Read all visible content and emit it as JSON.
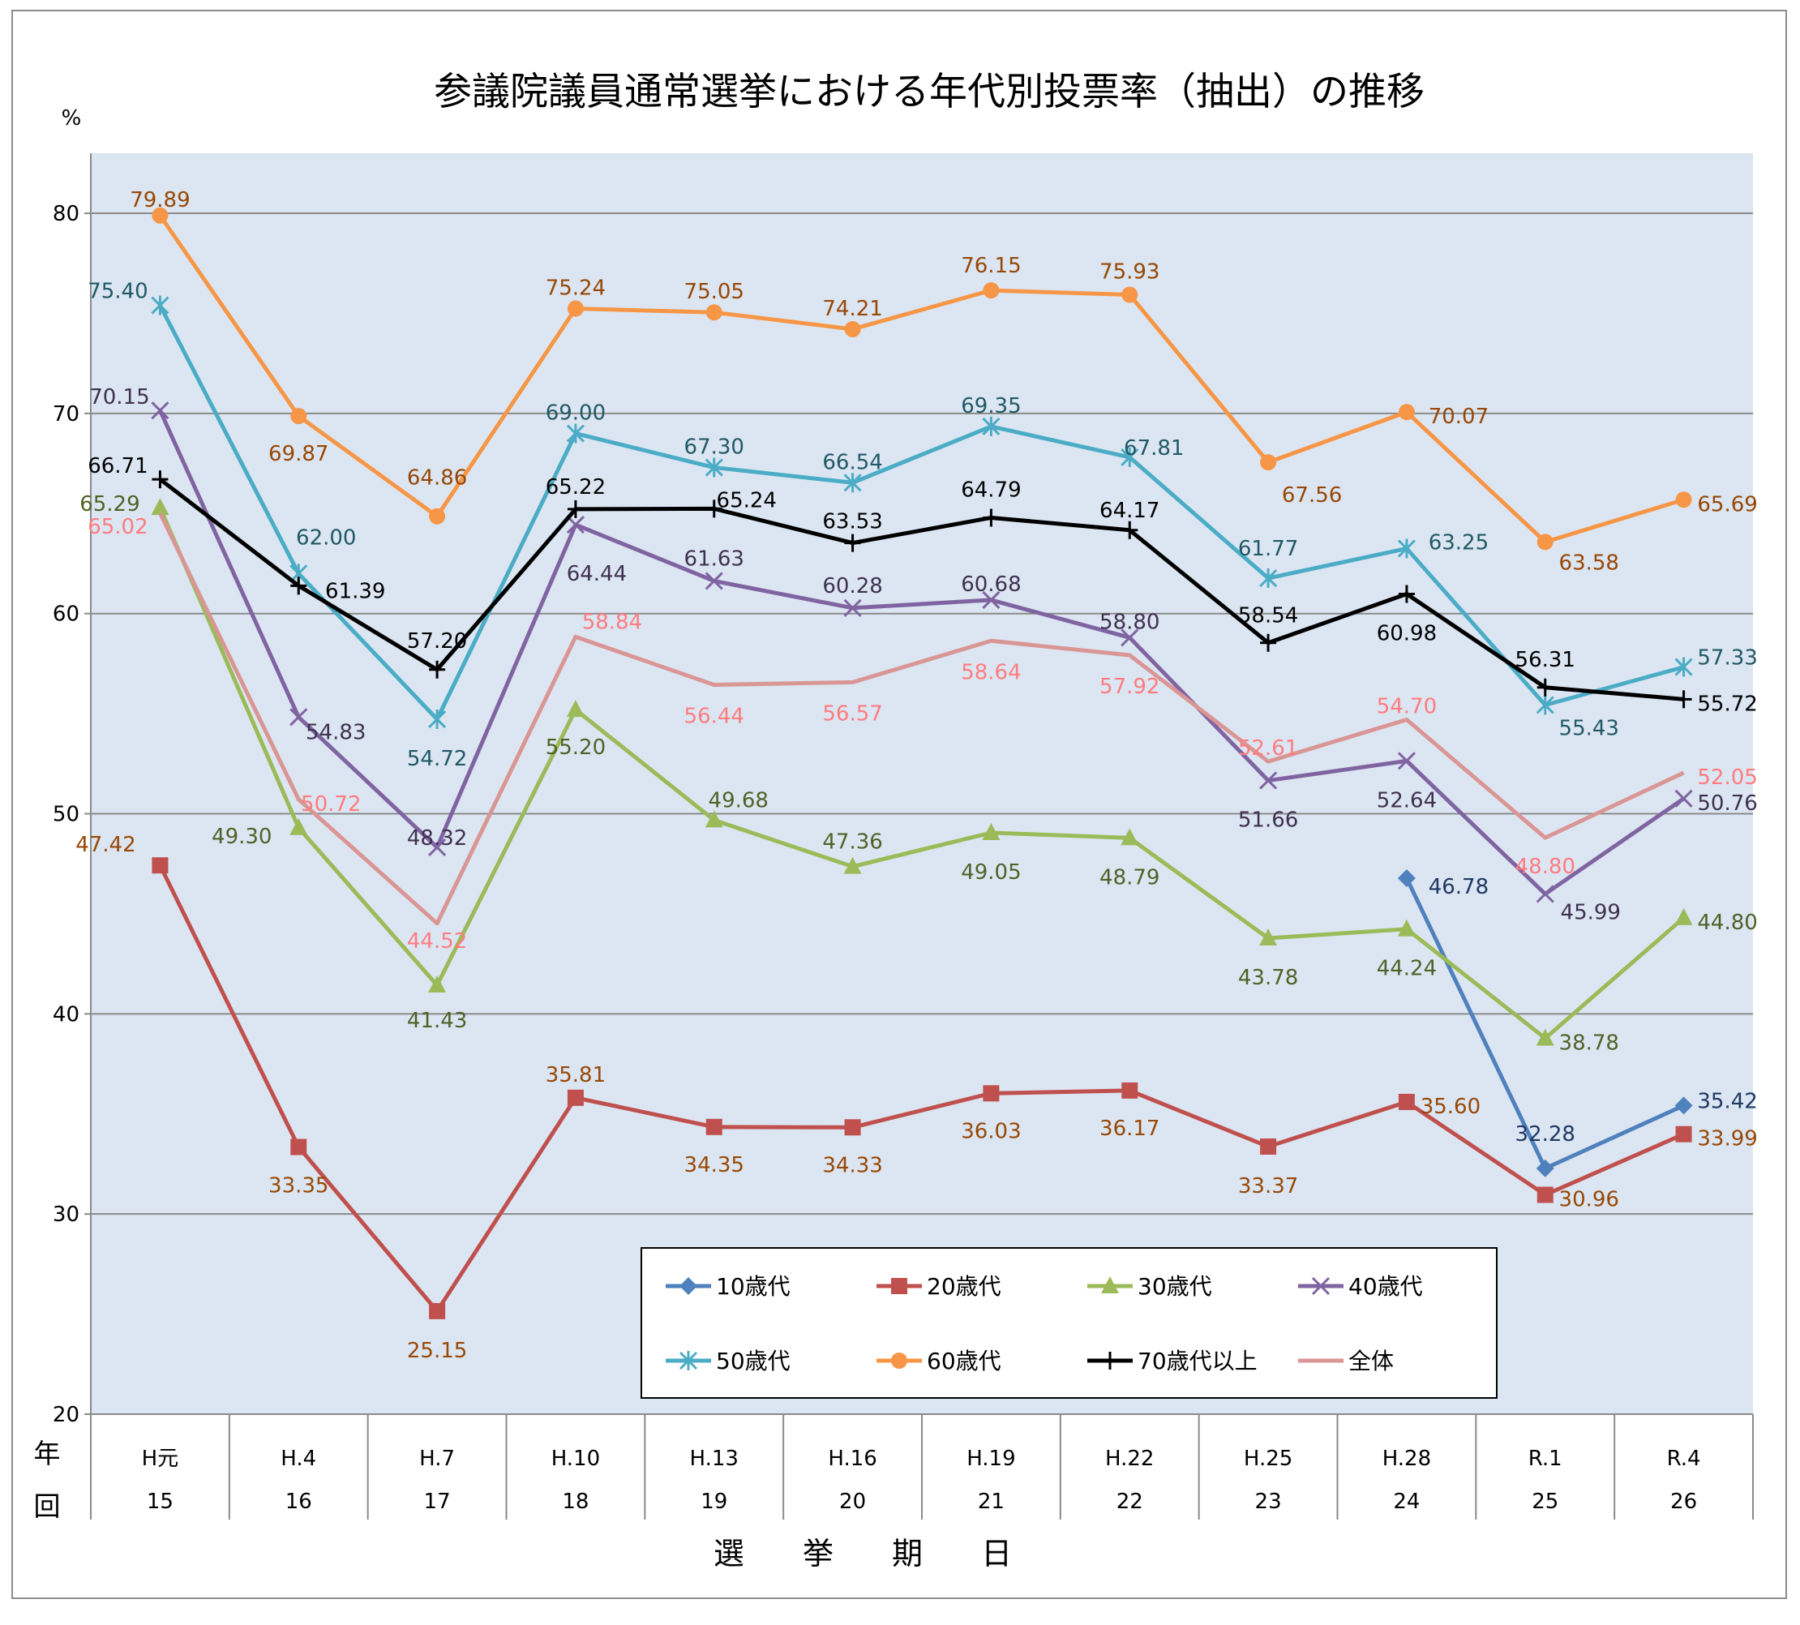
{
  "chart_data": {
    "type": "line",
    "title": "参議院議員通常選挙における年代別投票率（抽出）の推移",
    "ylabel": "%",
    "xlabel": "選 挙 期 日",
    "ylim": [
      20,
      83
    ],
    "yticks": [
      20,
      30,
      40,
      50,
      60,
      70,
      80
    ],
    "grid": true,
    "legend_position": "bottom-center",
    "row_labels": {
      "year": "年",
      "round": "回"
    },
    "categories": [
      "H元",
      "H.4",
      "H.7",
      "H.10",
      "H.13",
      "H.16",
      "H.19",
      "H.22",
      "H.25",
      "H.28",
      "R.1",
      "R.4"
    ],
    "rounds": [
      "15",
      "16",
      "17",
      "18",
      "19",
      "20",
      "21",
      "22",
      "23",
      "24",
      "25",
      "26"
    ],
    "series": [
      {
        "name": "10歳代",
        "color": "#4f81bd",
        "label_color": "#1f3864",
        "marker": "diamond",
        "values": [
          null,
          null,
          null,
          null,
          null,
          null,
          null,
          null,
          null,
          46.78,
          32.28,
          35.42
        ],
        "labels": [
          null,
          null,
          null,
          null,
          null,
          null,
          null,
          null,
          null,
          "46.78",
          "32.28",
          "35.42"
        ]
      },
      {
        "name": "20歳代",
        "color": "#c0504d",
        "label_color": "#984807",
        "marker": "square",
        "values": [
          47.42,
          33.35,
          25.15,
          35.81,
          34.35,
          34.33,
          36.03,
          36.17,
          33.37,
          35.6,
          30.96,
          33.99
        ],
        "labels": [
          "47.42",
          "33.35",
          "25.15",
          "35.81",
          "34.35",
          "34.33",
          "36.03",
          "36.17",
          "33.37",
          "35.60",
          "30.96",
          "33.99"
        ]
      },
      {
        "name": "30歳代",
        "color": "#9bbb59",
        "label_color": "#4f6228",
        "marker": "triangle",
        "values": [
          65.29,
          49.3,
          41.43,
          55.2,
          49.68,
          47.36,
          49.05,
          48.79,
          43.78,
          44.24,
          38.78,
          44.8
        ],
        "labels": [
          "65.29",
          "49.30",
          "41.43",
          "55.20",
          "49.68",
          "47.36",
          "49.05",
          "48.79",
          "43.78",
          "44.24",
          "38.78",
          "44.80"
        ]
      },
      {
        "name": "40歳代",
        "color": "#8064a2",
        "label_color": "#3f3151",
        "marker": "x",
        "values": [
          70.15,
          54.83,
          48.32,
          64.44,
          61.63,
          60.28,
          60.68,
          58.8,
          51.66,
          52.64,
          45.99,
          50.76
        ],
        "labels": [
          "70.15",
          "54.83",
          "48.32",
          "64.44",
          "61.63",
          "60.28",
          "60.68",
          "58.80",
          "51.66",
          "52.64",
          "45.99",
          "50.76"
        ]
      },
      {
        "name": "50歳代",
        "color": "#4bacc6",
        "label_color": "#215967",
        "marker": "star",
        "values": [
          75.4,
          62.0,
          54.72,
          69.0,
          67.3,
          66.54,
          69.35,
          67.81,
          61.77,
          63.25,
          55.43,
          57.33
        ],
        "labels": [
          "75.40",
          "62.00",
          "54.72",
          "69.00",
          "67.30",
          "66.54",
          "69.35",
          "67.81",
          "61.77",
          "63.25",
          "55.43",
          "57.33"
        ]
      },
      {
        "name": "60歳代",
        "color": "#f79646",
        "label_color": "#974706",
        "marker": "circle",
        "values": [
          79.89,
          69.87,
          64.86,
          75.24,
          75.05,
          74.21,
          76.15,
          75.93,
          67.56,
          70.07,
          63.58,
          65.69
        ],
        "labels": [
          "79.89",
          "69.87",
          "64.86",
          "75.24",
          "75.05",
          "74.21",
          "76.15",
          "75.93",
          "67.56",
          "70.07",
          "63.58",
          "65.69"
        ]
      },
      {
        "name": "70歳代以上",
        "color": "#000000",
        "label_color": "#000000",
        "marker": "plus",
        "values": [
          66.71,
          61.39,
          57.2,
          65.22,
          65.24,
          63.53,
          64.79,
          64.17,
          58.54,
          60.98,
          56.31,
          55.72
        ],
        "labels": [
          "66.71",
          "61.39",
          "57.20",
          "65.22",
          "65.24",
          "63.53",
          "64.79",
          "64.17",
          "58.54",
          "60.98",
          "56.31",
          "55.72"
        ]
      },
      {
        "name": "全体",
        "color": "#d99694",
        "label_color": "#ff7c80",
        "marker": "none",
        "values": [
          65.02,
          50.72,
          44.52,
          58.84,
          56.44,
          56.57,
          58.64,
          57.92,
          52.61,
          54.7,
          48.8,
          52.05
        ],
        "labels": [
          "65.02",
          "50.72",
          "44.52",
          "58.84",
          "56.44",
          "56.57",
          "58.64",
          "57.92",
          "52.61",
          "54.70",
          "48.80",
          "52.05"
        ]
      }
    ]
  }
}
